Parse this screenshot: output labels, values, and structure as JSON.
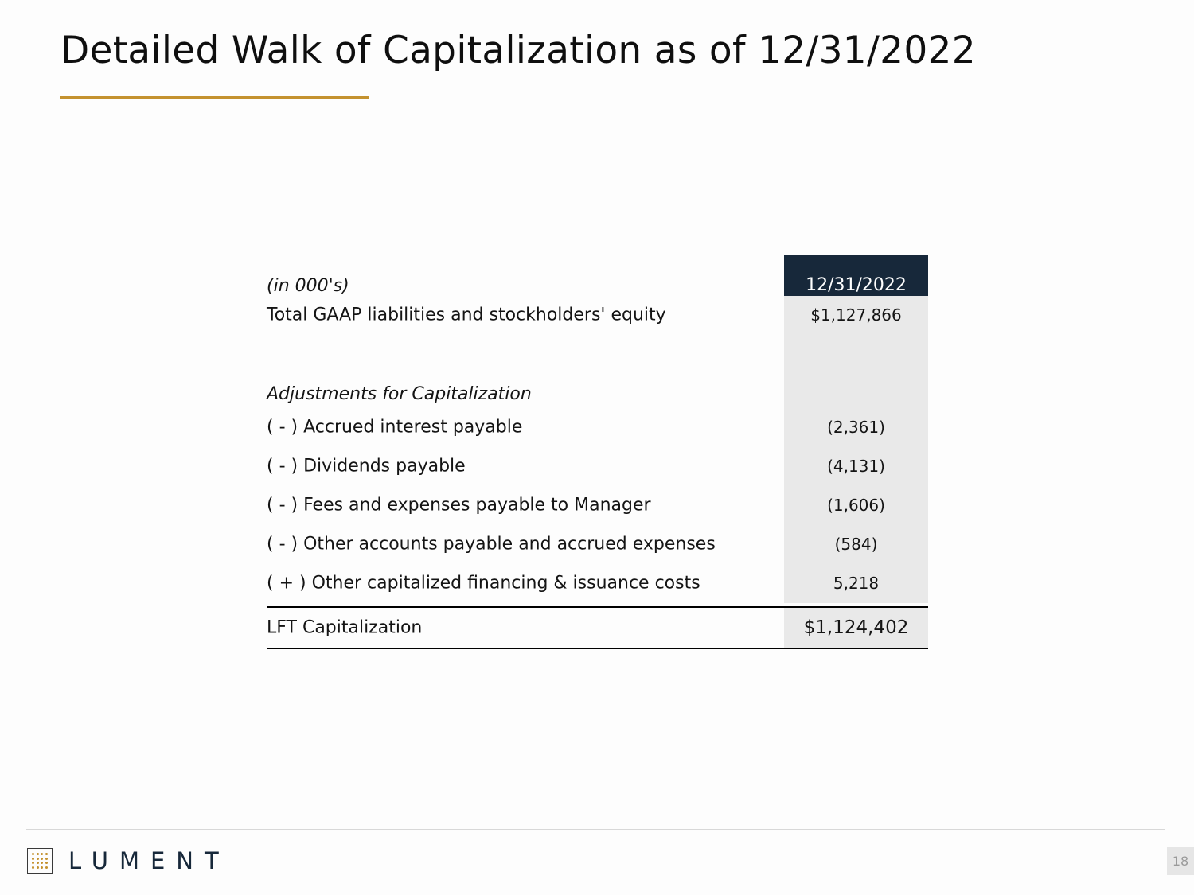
{
  "slide": {
    "title": "Detailed Walk of Capitalization as of 12/31/2022",
    "accent_color": "#c4922f"
  },
  "table": {
    "units_label": "(in 000's)",
    "column_header": "12/31/2022",
    "header_color": "#17283a",
    "total_gaap": {
      "label": "Total GAAP liabilities and stockholders' equity",
      "value": "$1,127,866"
    },
    "adjustments_heading": "Adjustments for Capitalization",
    "adjustments": [
      {
        "label": "( - ) Accrued interest payable",
        "value": "(2,361)"
      },
      {
        "label": "( - ) Dividends payable",
        "value": "(4,131)"
      },
      {
        "label": "( - ) Fees and expenses payable to Manager",
        "value": "(1,606)"
      },
      {
        "label": "( - ) Other accounts payable and accrued expenses",
        "value": "(584)"
      },
      {
        "label": "( + ) Other capitalized financing & issuance costs",
        "value": "5,218"
      }
    ],
    "capitalization": {
      "label": "LFT Capitalization",
      "value": "$1,124,402"
    }
  },
  "footer": {
    "logo_icon": "grid-dots-logo-icon",
    "brand": "LUMENT",
    "page_number": "18"
  }
}
